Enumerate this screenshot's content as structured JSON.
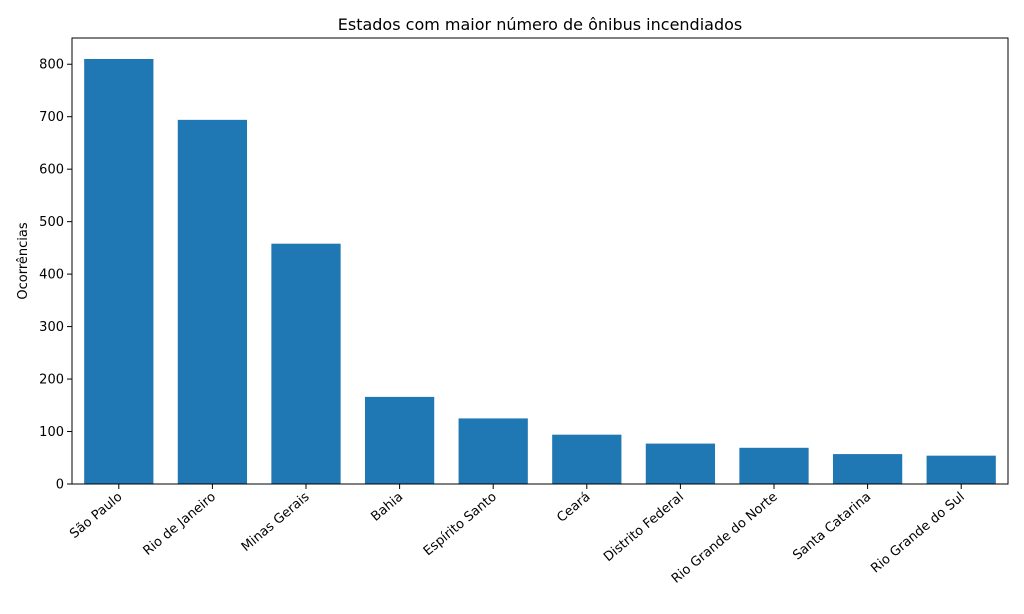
{
  "chart_data": {
    "type": "bar",
    "title": "Estados com maior número de ônibus incendiados",
    "xlabel": "",
    "ylabel": "Ocorrências",
    "categories": [
      "São Paulo",
      "Rio de Janeiro",
      "Minas Gerais",
      "Bahia",
      "Espírito Santo",
      "Ceará",
      "Distrito Federal",
      "Rio Grande do Norte",
      "Santa Catarina",
      "Rio Grande do Sul"
    ],
    "values": [
      810,
      694,
      458,
      166,
      125,
      94,
      77,
      69,
      57,
      54
    ],
    "ylim": [
      0,
      850
    ],
    "yticks": [
      0,
      100,
      200,
      300,
      400,
      500,
      600,
      700,
      800
    ],
    "grid": false,
    "bar_color": "#1f77b4"
  }
}
